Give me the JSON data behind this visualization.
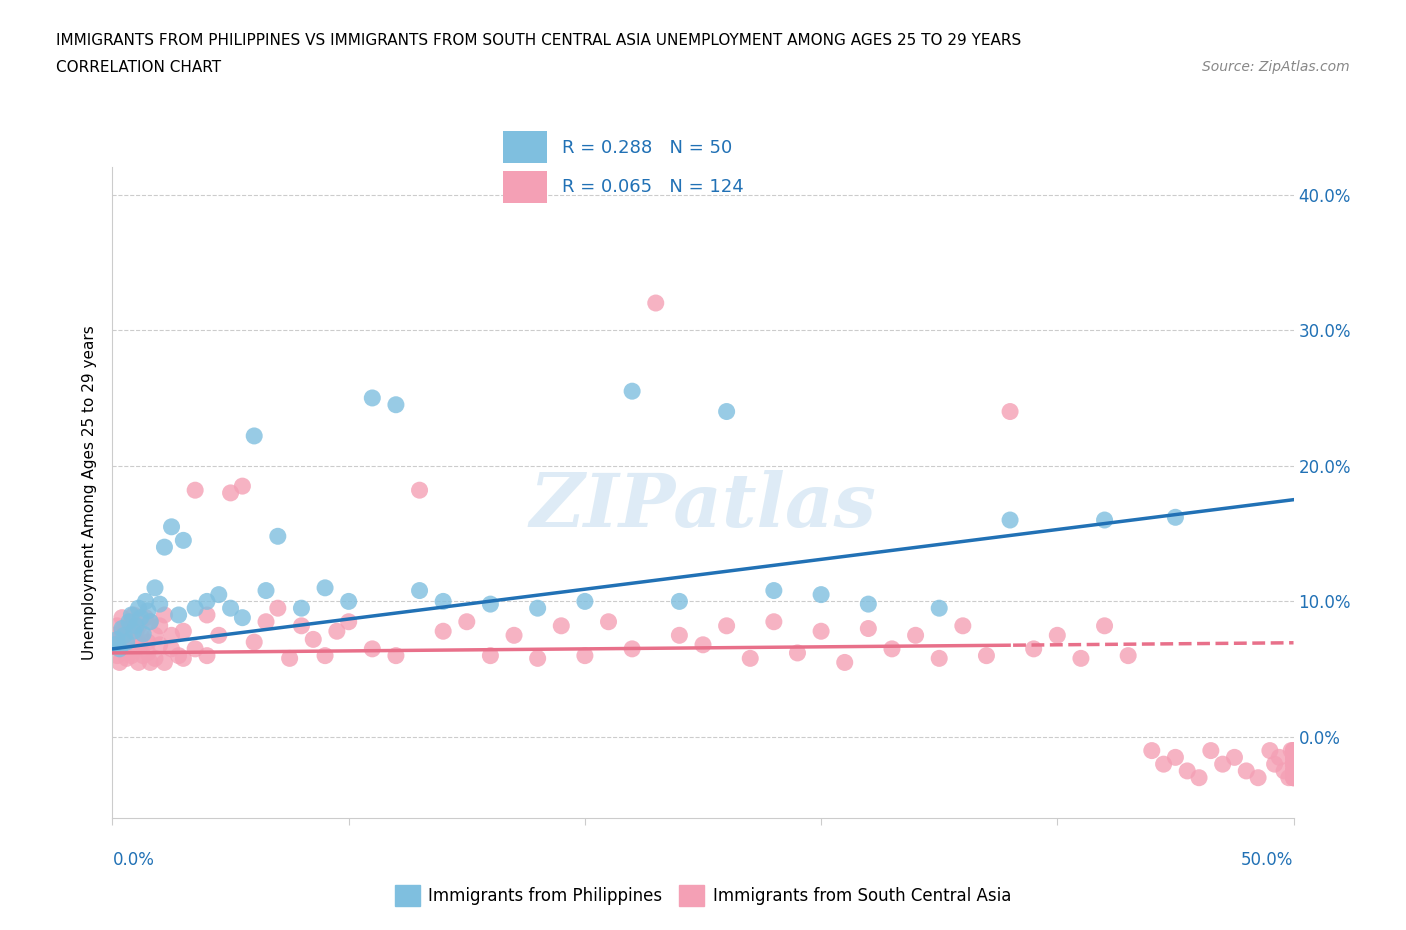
{
  "title_line1": "IMMIGRANTS FROM PHILIPPINES VS IMMIGRANTS FROM SOUTH CENTRAL ASIA UNEMPLOYMENT AMONG AGES 25 TO 29 YEARS",
  "title_line2": "CORRELATION CHART",
  "source": "Source: ZipAtlas.com",
  "ylabel": "Unemployment Among Ages 25 to 29 years",
  "xmin": 0.0,
  "xmax": 0.5,
  "ymin": -0.06,
  "ymax": 0.42,
  "yticks": [
    0.0,
    0.1,
    0.2,
    0.3,
    0.4
  ],
  "ytick_labels": [
    "0.0%",
    "10.0%",
    "20.0%",
    "30.0%",
    "40.0%"
  ],
  "color_philippines": "#7fbfdf",
  "color_south_central_asia": "#f4a0b5",
  "color_philippines_line": "#2171b5",
  "color_south_central_asia_line": "#e8708a",
  "watermark": "ZIPatlas",
  "phil_R": 0.288,
  "phil_N": 50,
  "sca_R": 0.065,
  "sca_N": 124,
  "phil_intercept": 0.065,
  "phil_slope": 0.22,
  "sca_intercept": 0.062,
  "sca_slope": 0.015,
  "phil_x": [
    0.001,
    0.002,
    0.003,
    0.004,
    0.005,
    0.006,
    0.007,
    0.008,
    0.009,
    0.01,
    0.011,
    0.012,
    0.013,
    0.014,
    0.015,
    0.016,
    0.018,
    0.02,
    0.022,
    0.025,
    0.028,
    0.03,
    0.035,
    0.04,
    0.045,
    0.05,
    0.055,
    0.06,
    0.065,
    0.07,
    0.08,
    0.09,
    0.1,
    0.11,
    0.12,
    0.13,
    0.14,
    0.16,
    0.18,
    0.2,
    0.22,
    0.24,
    0.26,
    0.28,
    0.3,
    0.32,
    0.35,
    0.38,
    0.42,
    0.45
  ],
  "phil_y": [
    0.068,
    0.072,
    0.065,
    0.08,
    0.075,
    0.07,
    0.085,
    0.09,
    0.078,
    0.082,
    0.095,
    0.088,
    0.076,
    0.1,
    0.093,
    0.085,
    0.11,
    0.098,
    0.14,
    0.155,
    0.09,
    0.145,
    0.095,
    0.1,
    0.105,
    0.095,
    0.088,
    0.222,
    0.108,
    0.148,
    0.095,
    0.11,
    0.1,
    0.25,
    0.245,
    0.108,
    0.1,
    0.098,
    0.095,
    0.1,
    0.255,
    0.1,
    0.24,
    0.108,
    0.105,
    0.098,
    0.095,
    0.16,
    0.16,
    0.162
  ],
  "sca_x": [
    0.001,
    0.001,
    0.002,
    0.002,
    0.003,
    0.003,
    0.004,
    0.004,
    0.005,
    0.005,
    0.006,
    0.006,
    0.007,
    0.007,
    0.008,
    0.008,
    0.009,
    0.009,
    0.01,
    0.01,
    0.011,
    0.011,
    0.012,
    0.012,
    0.013,
    0.014,
    0.015,
    0.015,
    0.016,
    0.016,
    0.018,
    0.018,
    0.02,
    0.02,
    0.022,
    0.022,
    0.025,
    0.025,
    0.028,
    0.03,
    0.03,
    0.035,
    0.035,
    0.04,
    0.04,
    0.045,
    0.05,
    0.055,
    0.06,
    0.065,
    0.07,
    0.075,
    0.08,
    0.085,
    0.09,
    0.095,
    0.1,
    0.11,
    0.12,
    0.13,
    0.14,
    0.15,
    0.16,
    0.17,
    0.18,
    0.19,
    0.2,
    0.21,
    0.22,
    0.23,
    0.24,
    0.25,
    0.26,
    0.27,
    0.28,
    0.29,
    0.3,
    0.31,
    0.32,
    0.33,
    0.34,
    0.35,
    0.36,
    0.37,
    0.38,
    0.39,
    0.4,
    0.41,
    0.42,
    0.43,
    0.44,
    0.445,
    0.45,
    0.455,
    0.46,
    0.465,
    0.47,
    0.475,
    0.48,
    0.485,
    0.49,
    0.492,
    0.494,
    0.496,
    0.498,
    0.499,
    0.5,
    0.5,
    0.5,
    0.5,
    0.5,
    0.5,
    0.5,
    0.5,
    0.5,
    0.5,
    0.5,
    0.5,
    0.5,
    0.5,
    0.5,
    0.5,
    0.5,
    0.5
  ],
  "sca_y": [
    0.068,
    0.075,
    0.06,
    0.082,
    0.072,
    0.055,
    0.078,
    0.088,
    0.065,
    0.075,
    0.058,
    0.08,
    0.07,
    0.062,
    0.085,
    0.06,
    0.072,
    0.09,
    0.065,
    0.078,
    0.055,
    0.082,
    0.068,
    0.075,
    0.06,
    0.088,
    0.07,
    0.062,
    0.085,
    0.055,
    0.075,
    0.058,
    0.068,
    0.082,
    0.055,
    0.09,
    0.065,
    0.075,
    0.06,
    0.078,
    0.058,
    0.182,
    0.065,
    0.09,
    0.06,
    0.075,
    0.18,
    0.185,
    0.07,
    0.085,
    0.095,
    0.058,
    0.082,
    0.072,
    0.06,
    0.078,
    0.085,
    0.065,
    0.06,
    0.182,
    0.078,
    0.085,
    0.06,
    0.075,
    0.058,
    0.082,
    0.06,
    0.085,
    0.065,
    0.32,
    0.075,
    0.068,
    0.082,
    0.058,
    0.085,
    0.062,
    0.078,
    0.055,
    0.08,
    0.065,
    0.075,
    0.058,
    0.082,
    0.06,
    0.24,
    0.065,
    0.075,
    0.058,
    0.082,
    0.06,
    -0.01,
    -0.02,
    -0.015,
    -0.025,
    -0.03,
    -0.01,
    -0.02,
    -0.015,
    -0.025,
    -0.03,
    -0.01,
    -0.02,
    -0.015,
    -0.025,
    -0.03,
    -0.01,
    -0.02,
    -0.015,
    -0.025,
    -0.03,
    -0.01,
    -0.02,
    -0.015,
    -0.025,
    -0.03,
    -0.01,
    -0.02,
    -0.015,
    -0.025,
    -0.03,
    -0.01,
    -0.02,
    -0.015,
    -0.025
  ]
}
